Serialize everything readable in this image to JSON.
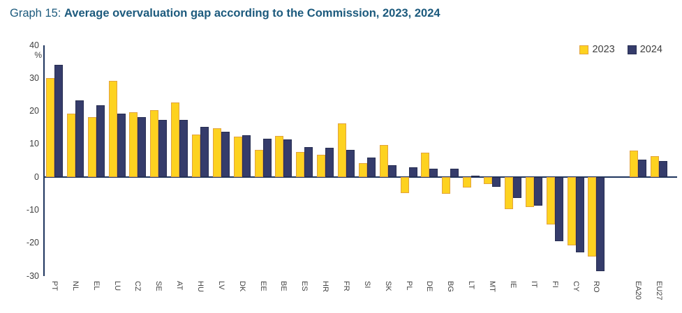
{
  "header": {
    "prefix": "Graph 15:",
    "title": "Average overvaluation gap according to the Commission, 2023, 2024"
  },
  "legend": {
    "items": [
      {
        "label": "2023",
        "color": "#FDD220",
        "border": "#E2A33D"
      },
      {
        "label": "2024",
        "color": "#353C6B",
        "border": "#272E52"
      }
    ]
  },
  "colors": {
    "series_2023_fill": "#FDD220",
    "series_2023_border": "#E2A33D",
    "series_2024_fill": "#353C6B",
    "series_2024_border": "#272E52",
    "axis_line": "#1F355E",
    "title_text": "#1C5A7D",
    "tick_text": "#3F3F3F"
  },
  "chart_data": {
    "type": "bar",
    "title": "Average overvaluation gap according to the Commission, 2023, 2024",
    "xlabel": "",
    "ylabel": "%",
    "ylim": [
      -30,
      40
    ],
    "yticks": [
      40,
      30,
      20,
      10,
      0,
      -10,
      -20,
      -30
    ],
    "grid": false,
    "legend_position": "top-right",
    "categories": [
      "PT",
      "NL",
      "EL",
      "LU",
      "CZ",
      "SE",
      "AT",
      "HU",
      "LV",
      "DK",
      "EE",
      "BE",
      "ES",
      "HR",
      "FR",
      "SI",
      "SK",
      "PL",
      "DE",
      "BG",
      "LT",
      "MT",
      "IE",
      "IT",
      "FI",
      "CY",
      "RO",
      "EA20",
      "EU27"
    ],
    "separator_after_index": 26,
    "series": [
      {
        "name": "2023",
        "values": [
          30.1,
          19.3,
          18.3,
          29.3,
          19.7,
          20.3,
          22.7,
          13.0,
          14.9,
          12.2,
          8.2,
          12.6,
          7.6,
          6.7,
          16.3,
          4.3,
          9.7,
          -4.9,
          7.5,
          -5.1,
          -3.2,
          -2.0,
          -9.7,
          -9.0,
          -14.3,
          -20.8,
          -24.0,
          8.0,
          6.3
        ]
      },
      {
        "name": "2024",
        "values": [
          34.0,
          23.3,
          21.9,
          19.2,
          18.3,
          17.4,
          17.3,
          15.3,
          13.7,
          12.7,
          11.6,
          11.5,
          9.1,
          9.0,
          8.2,
          5.9,
          3.6,
          3.0,
          2.6,
          2.5,
          0.4,
          -2.9,
          -6.4,
          -8.6,
          -19.4,
          -22.8,
          -28.5,
          5.4,
          4.9
        ]
      }
    ]
  }
}
